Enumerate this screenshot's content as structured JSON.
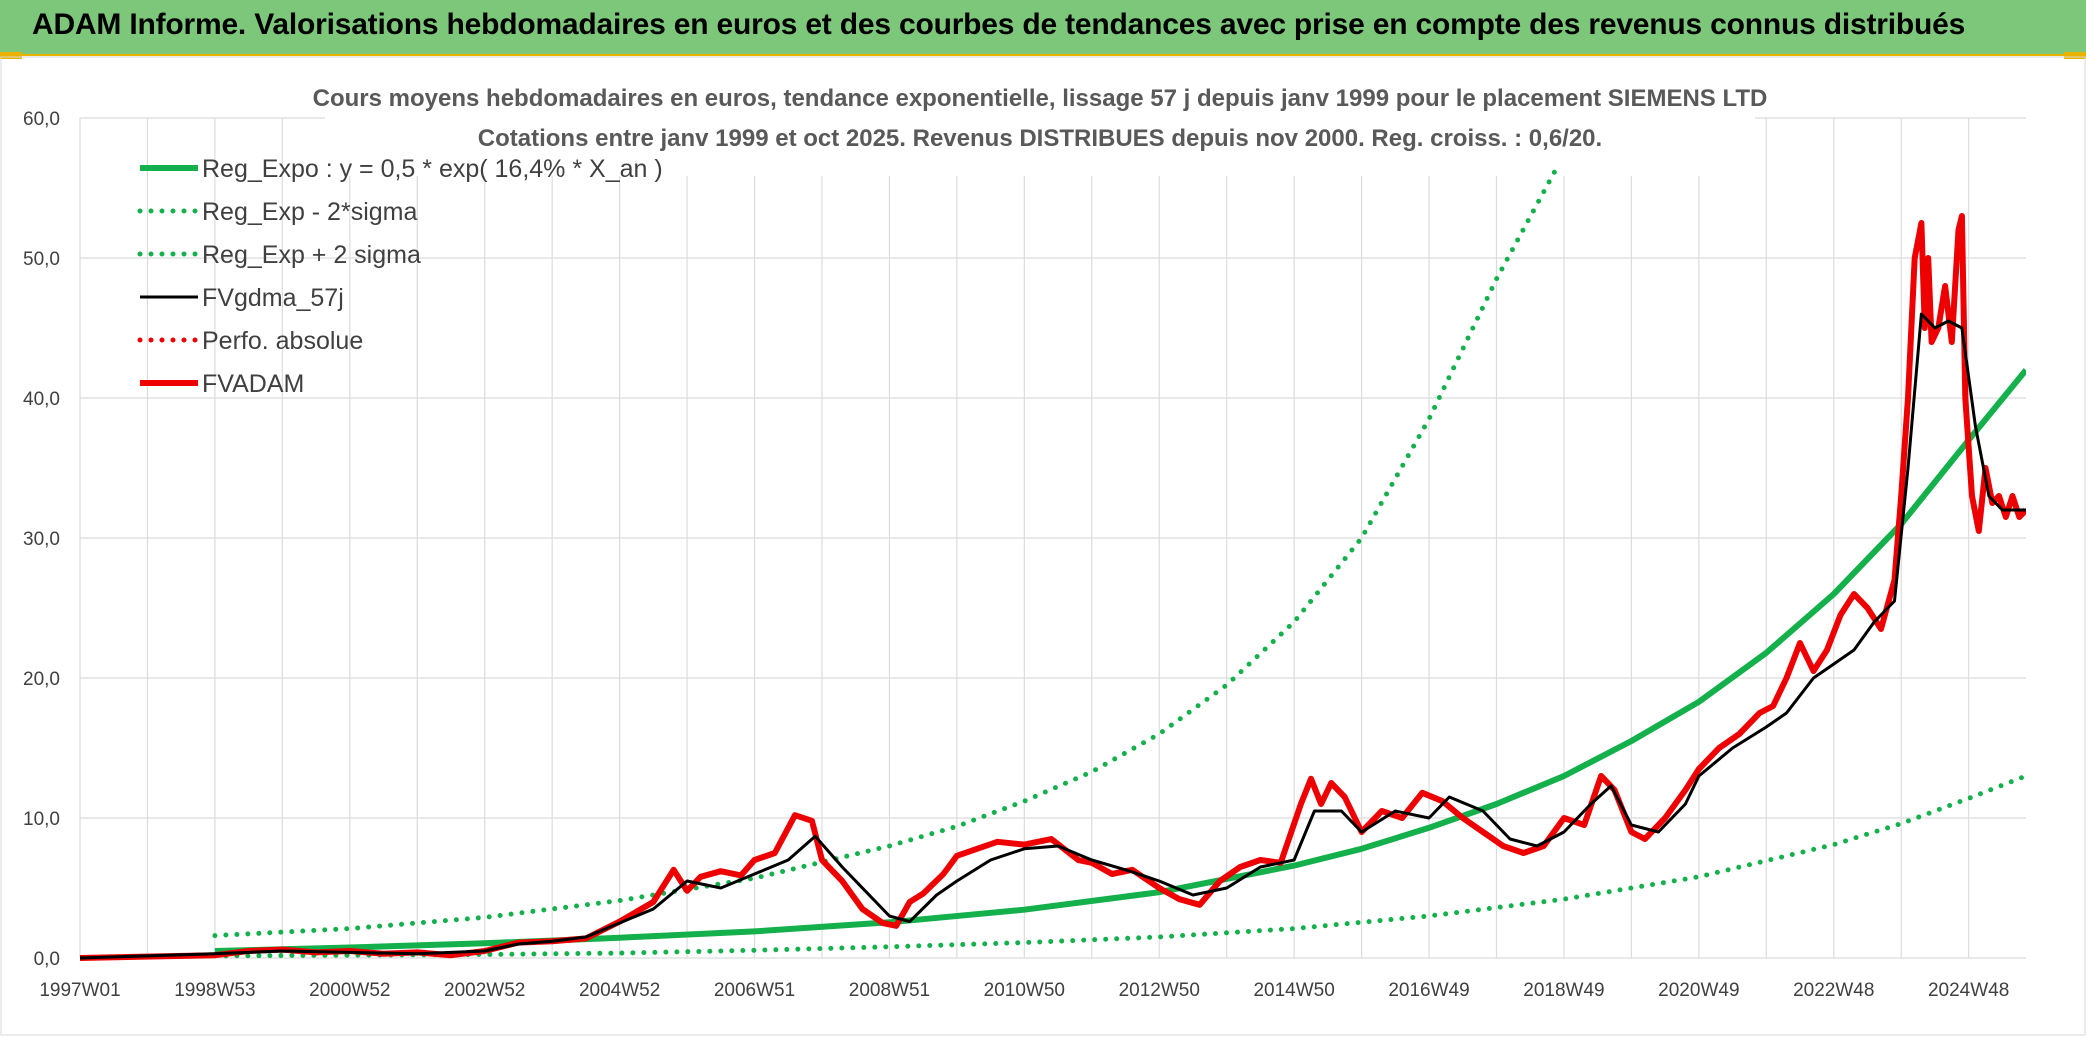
{
  "header": {
    "banner_title": "ADAM Informe. Valorisations hebdomadaires en euros et des courbes de tendances avec prise en compte des revenus connus distribués"
  },
  "colors": {
    "banner_bg": "#7dc77a",
    "banner_accent": "#e9b400",
    "reg_expo": "#13b04b",
    "fvgdma": "#000000",
    "fvadam": "#ee0000",
    "grid": "#dcdcdc"
  },
  "chart_data": {
    "type": "line",
    "title": "Cours moyens hebdomadaires en euros, tendance exponentielle, lissage 57 j depuis janv 1999 pour le placement SIEMENS LTD",
    "subtitle": "Cotations entre janv 1999 et oct 2025. Revenus DISTRIBUES depuis nov 2000. Reg. croiss. : 0,6/20.",
    "x_tick_labels": [
      "1997W01",
      "1998W53",
      "2000W52",
      "2002W52",
      "2004W52",
      "2006W51",
      "2008W51",
      "2010W50",
      "2012W50",
      "2014W50",
      "2016W49",
      "2018W49",
      "2020W49",
      "2022W48",
      "2024W48"
    ],
    "x_tick_years": [
      1997.0,
      1999.0,
      2001.0,
      2003.0,
      2005.0,
      2007.0,
      2009.0,
      2011.0,
      2013.0,
      2015.0,
      2017.0,
      2019.0,
      2021.0,
      2023.0,
      2025.0
    ],
    "x_range": [
      1997.0,
      2025.85
    ],
    "ylim": [
      0,
      60
    ],
    "y_ticks": [
      0,
      10,
      20,
      30,
      40,
      50,
      60
    ],
    "y_tick_labels": [
      "0,0",
      "10,0",
      "20,0",
      "30,0",
      "40,0",
      "50,0",
      "60,0"
    ],
    "grid": true,
    "legend_position": "top-left",
    "legend": [
      {
        "label": "Reg_Expo : y = 0,5 * exp( 16,4% *  X_an )",
        "color": "#13b04b",
        "style": "solid-thick"
      },
      {
        "label": "Reg_Exp - 2*sigma",
        "color": "#13b04b",
        "style": "dotted"
      },
      {
        "label": "Reg_Exp + 2 sigma",
        "color": "#13b04b",
        "style": "dotted"
      },
      {
        "label": "FVgdma_57j",
        "color": "#000000",
        "style": "solid"
      },
      {
        "label": "Perfo. absolue",
        "color": "#ee0000",
        "style": "dotted"
      },
      {
        "label": "FVADAM",
        "color": "#ee0000",
        "style": "solid-thick"
      }
    ],
    "series": [
      {
        "name": "Reg_Expo : y = 0,5 * exp( 16,4% *  X_an )",
        "x": [
          1999.0,
          2001.0,
          2003.0,
          2005.0,
          2007.0,
          2009.0,
          2011.0,
          2013.0,
          2015.0,
          2016.0,
          2017.0,
          2018.0,
          2019.0,
          2020.0,
          2021.0,
          2022.0,
          2023.0,
          2024.0,
          2025.0,
          2025.85
        ],
        "values": [
          0.5,
          0.75,
          1.05,
          1.45,
          1.9,
          2.55,
          3.45,
          4.7,
          6.6,
          7.8,
          9.3,
          11.0,
          13.0,
          15.5,
          18.3,
          21.8,
          26.0,
          31.0,
          37.0,
          42.0
        ]
      },
      {
        "name": "Reg_Exp - 2*sigma",
        "x": [
          1999.0,
          2001.0,
          2003.0,
          2005.0,
          2007.0,
          2009.0,
          2011.0,
          2013.0,
          2015.0,
          2017.0,
          2019.0,
          2021.0,
          2023.0,
          2024.0,
          2025.0,
          2025.85
        ],
        "values": [
          0.15,
          0.2,
          0.25,
          0.35,
          0.55,
          0.8,
          1.1,
          1.5,
          2.1,
          3.0,
          4.2,
          5.8,
          8.1,
          9.6,
          11.4,
          13.0
        ]
      },
      {
        "name": "Reg_Exp + 2 sigma",
        "x": [
          1999.0,
          2001.0,
          2003.0,
          2005.0,
          2007.0,
          2009.0,
          2010.0,
          2011.0,
          2012.0,
          2013.0,
          2014.0,
          2015.0,
          2016.0,
          2017.0,
          2018.0,
          2018.9
        ],
        "values": [
          1.6,
          2.1,
          2.9,
          4.1,
          5.7,
          8.0,
          9.4,
          11.2,
          13.3,
          16.0,
          19.5,
          24.0,
          30.0,
          38.5,
          48.5,
          56.5
        ]
      },
      {
        "name": "FVgdma_57j",
        "x": [
          1997.0,
          1999.0,
          2000.0,
          2001.0,
          2002.0,
          2003.0,
          2003.5,
          2004.0,
          2004.5,
          2005.0,
          2005.5,
          2006.0,
          2006.5,
          2007.0,
          2007.5,
          2007.9,
          2008.3,
          2008.8,
          2009.0,
          2009.3,
          2009.7,
          2010.0,
          2010.5,
          2011.0,
          2011.5,
          2012.0,
          2012.5,
          2013.0,
          2013.5,
          2014.0,
          2014.5,
          2015.0,
          2015.3,
          2015.7,
          2016.0,
          2016.5,
          2017.0,
          2017.3,
          2017.8,
          2018.2,
          2018.6,
          2019.0,
          2019.4,
          2019.7,
          2020.0,
          2020.4,
          2020.8,
          2021.0,
          2021.5,
          2022.0,
          2022.3,
          2022.7,
          2023.0,
          2023.3,
          2023.6,
          2023.9,
          2024.1,
          2024.3,
          2024.5,
          2024.7,
          2024.9,
          2025.1,
          2025.3,
          2025.5,
          2025.85
        ],
        "values": [
          0.0,
          0.3,
          0.5,
          0.4,
          0.3,
          0.5,
          1.0,
          1.2,
          1.5,
          2.5,
          3.5,
          5.5,
          5.0,
          6.0,
          7.0,
          8.7,
          6.5,
          4.0,
          3.0,
          2.6,
          4.5,
          5.5,
          7.0,
          7.8,
          8.0,
          7.0,
          6.3,
          5.5,
          4.5,
          5.0,
          6.5,
          7.0,
          10.5,
          10.5,
          9.0,
          10.5,
          10.0,
          11.5,
          10.5,
          8.5,
          8.0,
          9.0,
          11.0,
          12.3,
          9.5,
          9.0,
          11.0,
          13.0,
          15.0,
          16.5,
          17.5,
          20.0,
          21.0,
          22.0,
          24.0,
          25.5,
          35.0,
          46.0,
          45.0,
          45.5,
          45.0,
          38.0,
          33.0,
          32.0,
          32.0
        ]
      },
      {
        "name": "FVADAM",
        "x": [
          1997.0,
          1999.0,
          1999.5,
          2000.0,
          2000.5,
          2001.0,
          2001.5,
          2002.0,
          2002.5,
          2003.0,
          2003.5,
          2004.0,
          2004.5,
          2005.0,
          2005.5,
          2005.8,
          2006.0,
          2006.2,
          2006.5,
          2006.8,
          2007.0,
          2007.3,
          2007.6,
          2007.85,
          2008.0,
          2008.3,
          2008.6,
          2008.9,
          2009.1,
          2009.3,
          2009.5,
          2009.8,
          2010.0,
          2010.3,
          2010.6,
          2011.0,
          2011.4,
          2011.8,
          2012.0,
          2012.3,
          2012.6,
          2013.0,
          2013.3,
          2013.6,
          2013.9,
          2014.2,
          2014.5,
          2014.8,
          2015.1,
          2015.25,
          2015.4,
          2015.55,
          2015.75,
          2016.0,
          2016.3,
          2016.6,
          2016.9,
          2017.2,
          2017.5,
          2017.8,
          2018.1,
          2018.4,
          2018.7,
          2019.0,
          2019.3,
          2019.55,
          2019.75,
          2020.0,
          2020.2,
          2020.5,
          2020.8,
          2021.0,
          2021.3,
          2021.6,
          2021.9,
          2022.1,
          2022.3,
          2022.5,
          2022.7,
          2022.9,
          2023.1,
          2023.3,
          2023.5,
          2023.7,
          2023.9,
          2024.0,
          2024.1,
          2024.2,
          2024.3,
          2024.35,
          2024.4,
          2024.45,
          2024.55,
          2024.65,
          2024.75,
          2024.85,
          2024.9,
          2024.95,
          2025.05,
          2025.15,
          2025.25,
          2025.35,
          2025.45,
          2025.55,
          2025.65,
          2025.75,
          2025.85
        ],
        "values": [
          0.0,
          0.2,
          0.5,
          0.6,
          0.4,
          0.5,
          0.3,
          0.4,
          0.2,
          0.5,
          1.1,
          1.2,
          1.4,
          2.6,
          4.0,
          6.3,
          4.8,
          5.8,
          6.2,
          5.9,
          7.0,
          7.5,
          10.2,
          9.8,
          7.0,
          5.5,
          3.5,
          2.5,
          2.3,
          4.0,
          4.6,
          6.0,
          7.3,
          7.8,
          8.3,
          8.1,
          8.5,
          7.0,
          6.8,
          6.0,
          6.3,
          5.0,
          4.2,
          3.8,
          5.5,
          6.5,
          7.0,
          6.8,
          11.0,
          12.8,
          11.0,
          12.5,
          11.5,
          9.0,
          10.5,
          10.0,
          11.8,
          11.2,
          10.0,
          9.0,
          8.0,
          7.5,
          8.0,
          10.0,
          9.5,
          13.0,
          12.0,
          9.0,
          8.5,
          10.0,
          12.0,
          13.5,
          15.0,
          16.0,
          17.5,
          18.0,
          20.0,
          22.5,
          20.5,
          22.0,
          24.5,
          26.0,
          25.0,
          23.5,
          27.0,
          33.0,
          40.0,
          50.0,
          52.5,
          45.0,
          50.0,
          44.0,
          45.0,
          48.0,
          44.0,
          52.0,
          53.0,
          40.0,
          33.0,
          30.5,
          35.0,
          32.5,
          33.0,
          31.5,
          33.0,
          31.5,
          32.0
        ]
      }
    ]
  }
}
